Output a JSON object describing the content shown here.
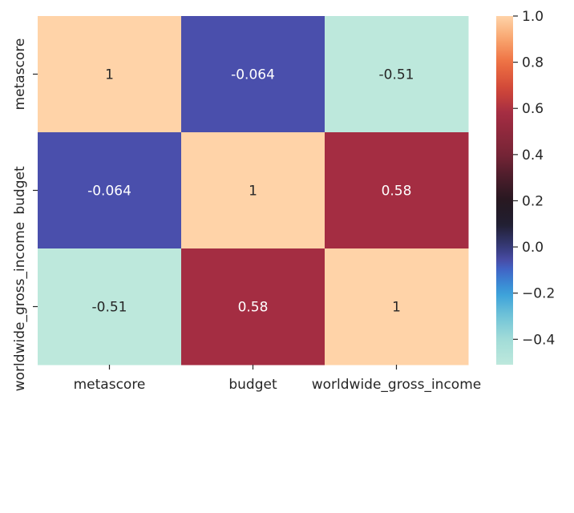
{
  "chart_data": {
    "type": "heatmap",
    "title": "",
    "x_categories": [
      "metascore",
      "budget",
      "worldwide_gross_income"
    ],
    "y_categories": [
      "metascore",
      "budget",
      "worldwide_gross_income"
    ],
    "values": [
      [
        1,
        -0.064,
        -0.51
      ],
      [
        -0.064,
        1,
        0.58
      ],
      [
        -0.51,
        0.58,
        1
      ]
    ],
    "cell_labels": [
      [
        "1",
        "-0.064",
        "-0.51"
      ],
      [
        "-0.064",
        "1",
        "0.58"
      ],
      [
        "-0.51",
        "0.58",
        "1"
      ]
    ],
    "colorbar": {
      "range": [
        -0.51,
        1
      ],
      "ticks": [
        1.0,
        0.8,
        0.6,
        0.4,
        0.2,
        0.0,
        -0.2,
        -0.4
      ],
      "tick_labels": [
        "1.0",
        "0.8",
        "0.6",
        "0.4",
        "0.2",
        "0.0",
        "−0.2",
        "−0.4"
      ],
      "colormap": "icefire"
    }
  }
}
